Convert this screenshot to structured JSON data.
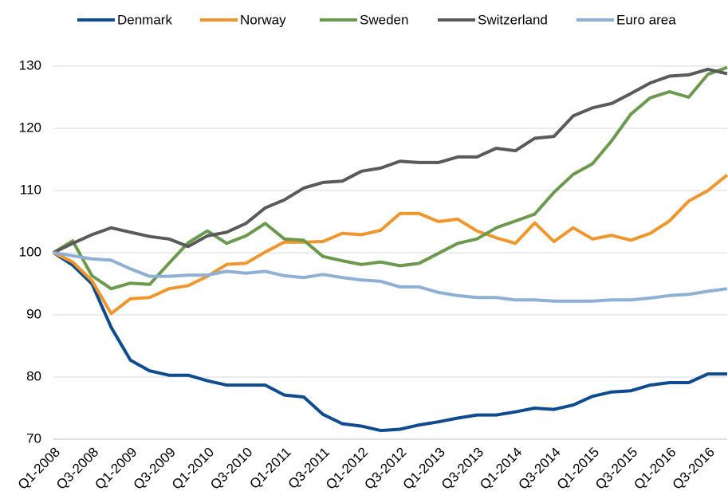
{
  "chart_data": {
    "type": "line",
    "categories": [
      "Q1-2008",
      null,
      "Q3-2008",
      null,
      "Q1-2009",
      null,
      "Q3-2009",
      null,
      "Q1-2010",
      null,
      "Q3-2010",
      null,
      "Q1-2011",
      null,
      "Q3-2011",
      null,
      "Q1-2012",
      null,
      "Q3-2012",
      null,
      "Q1-2013",
      null,
      "Q3-2013",
      null,
      "Q1-2014",
      null,
      "Q3-2014",
      null,
      "Q1-2015",
      null,
      "Q3-2015",
      null,
      "Q1-2016",
      null,
      "Q3-2016",
      null
    ],
    "series": [
      {
        "name": "Denmark",
        "color": "#0f4c8f",
        "values": [
          100,
          98,
          95,
          88,
          82.7,
          81,
          80.3,
          80.3,
          79.4,
          78.7,
          78.7,
          78.7,
          77.1,
          76.8,
          74,
          72.5,
          72.1,
          71.4,
          71.6,
          72.3,
          72.8,
          73.4,
          73.9,
          73.9,
          74.4,
          75,
          74.8,
          75.5,
          76.9,
          77.6,
          77.8,
          78.7,
          79.1,
          79.1,
          80.5,
          80.5
        ]
      },
      {
        "name": "Norway",
        "color": "#f0962e",
        "values": [
          100,
          98.5,
          95.5,
          90.2,
          92.6,
          92.8,
          94.2,
          94.7,
          96.2,
          98.1,
          98.3,
          100.1,
          101.7,
          101.7,
          101.8,
          103.1,
          102.9,
          103.6,
          106.3,
          106.3,
          105,
          105.4,
          103.5,
          102.4,
          101.5,
          104.8,
          101.8,
          104,
          102.2,
          102.8,
          102,
          103.1,
          105.1,
          108.3,
          110,
          112.5
        ]
      },
      {
        "name": "Sweden",
        "color": "#6b9a4f",
        "values": [
          100,
          101.9,
          96.3,
          94.2,
          95.1,
          94.9,
          98.3,
          101.6,
          103.5,
          101.5,
          102.7,
          104.7,
          102.2,
          102,
          99.4,
          98.7,
          98.1,
          98.5,
          97.9,
          98.3,
          99.9,
          101.5,
          102.2,
          104,
          105.1,
          106.2,
          109.7,
          112.6,
          114.3,
          118,
          122.3,
          124.9,
          125.9,
          125,
          128.7,
          129.8
        ]
      },
      {
        "name": "Switzerland",
        "color": "#5a5a5a",
        "values": [
          100,
          101.5,
          102.9,
          104,
          103.3,
          102.6,
          102.2,
          101,
          102.7,
          103.3,
          104.7,
          107.2,
          108.5,
          110.4,
          111.3,
          111.5,
          113.1,
          113.6,
          114.7,
          114.5,
          114.5,
          115.4,
          115.4,
          116.8,
          116.4,
          118.4,
          118.7,
          122,
          123.3,
          124,
          125.6,
          127.3,
          128.4,
          128.6,
          129.5,
          128.8
        ]
      },
      {
        "name": "Euro area",
        "color": "#8eb0d5",
        "values": [
          100,
          99.5,
          99,
          98.8,
          97.4,
          96.2,
          96.2,
          96.4,
          96.4,
          97,
          96.7,
          97,
          96.3,
          96,
          96.5,
          96,
          95.6,
          95.4,
          94.5,
          94.5,
          93.6,
          93.1,
          92.8,
          92.8,
          92.4,
          92.4,
          92.2,
          92.2,
          92.2,
          92.4,
          92.4,
          92.7,
          93.1,
          93.3,
          93.8,
          94.2
        ]
      }
    ],
    "ylim": [
      70,
      130
    ],
    "yticks": [
      70,
      80,
      90,
      100,
      110,
      120,
      130
    ],
    "grid": true
  }
}
